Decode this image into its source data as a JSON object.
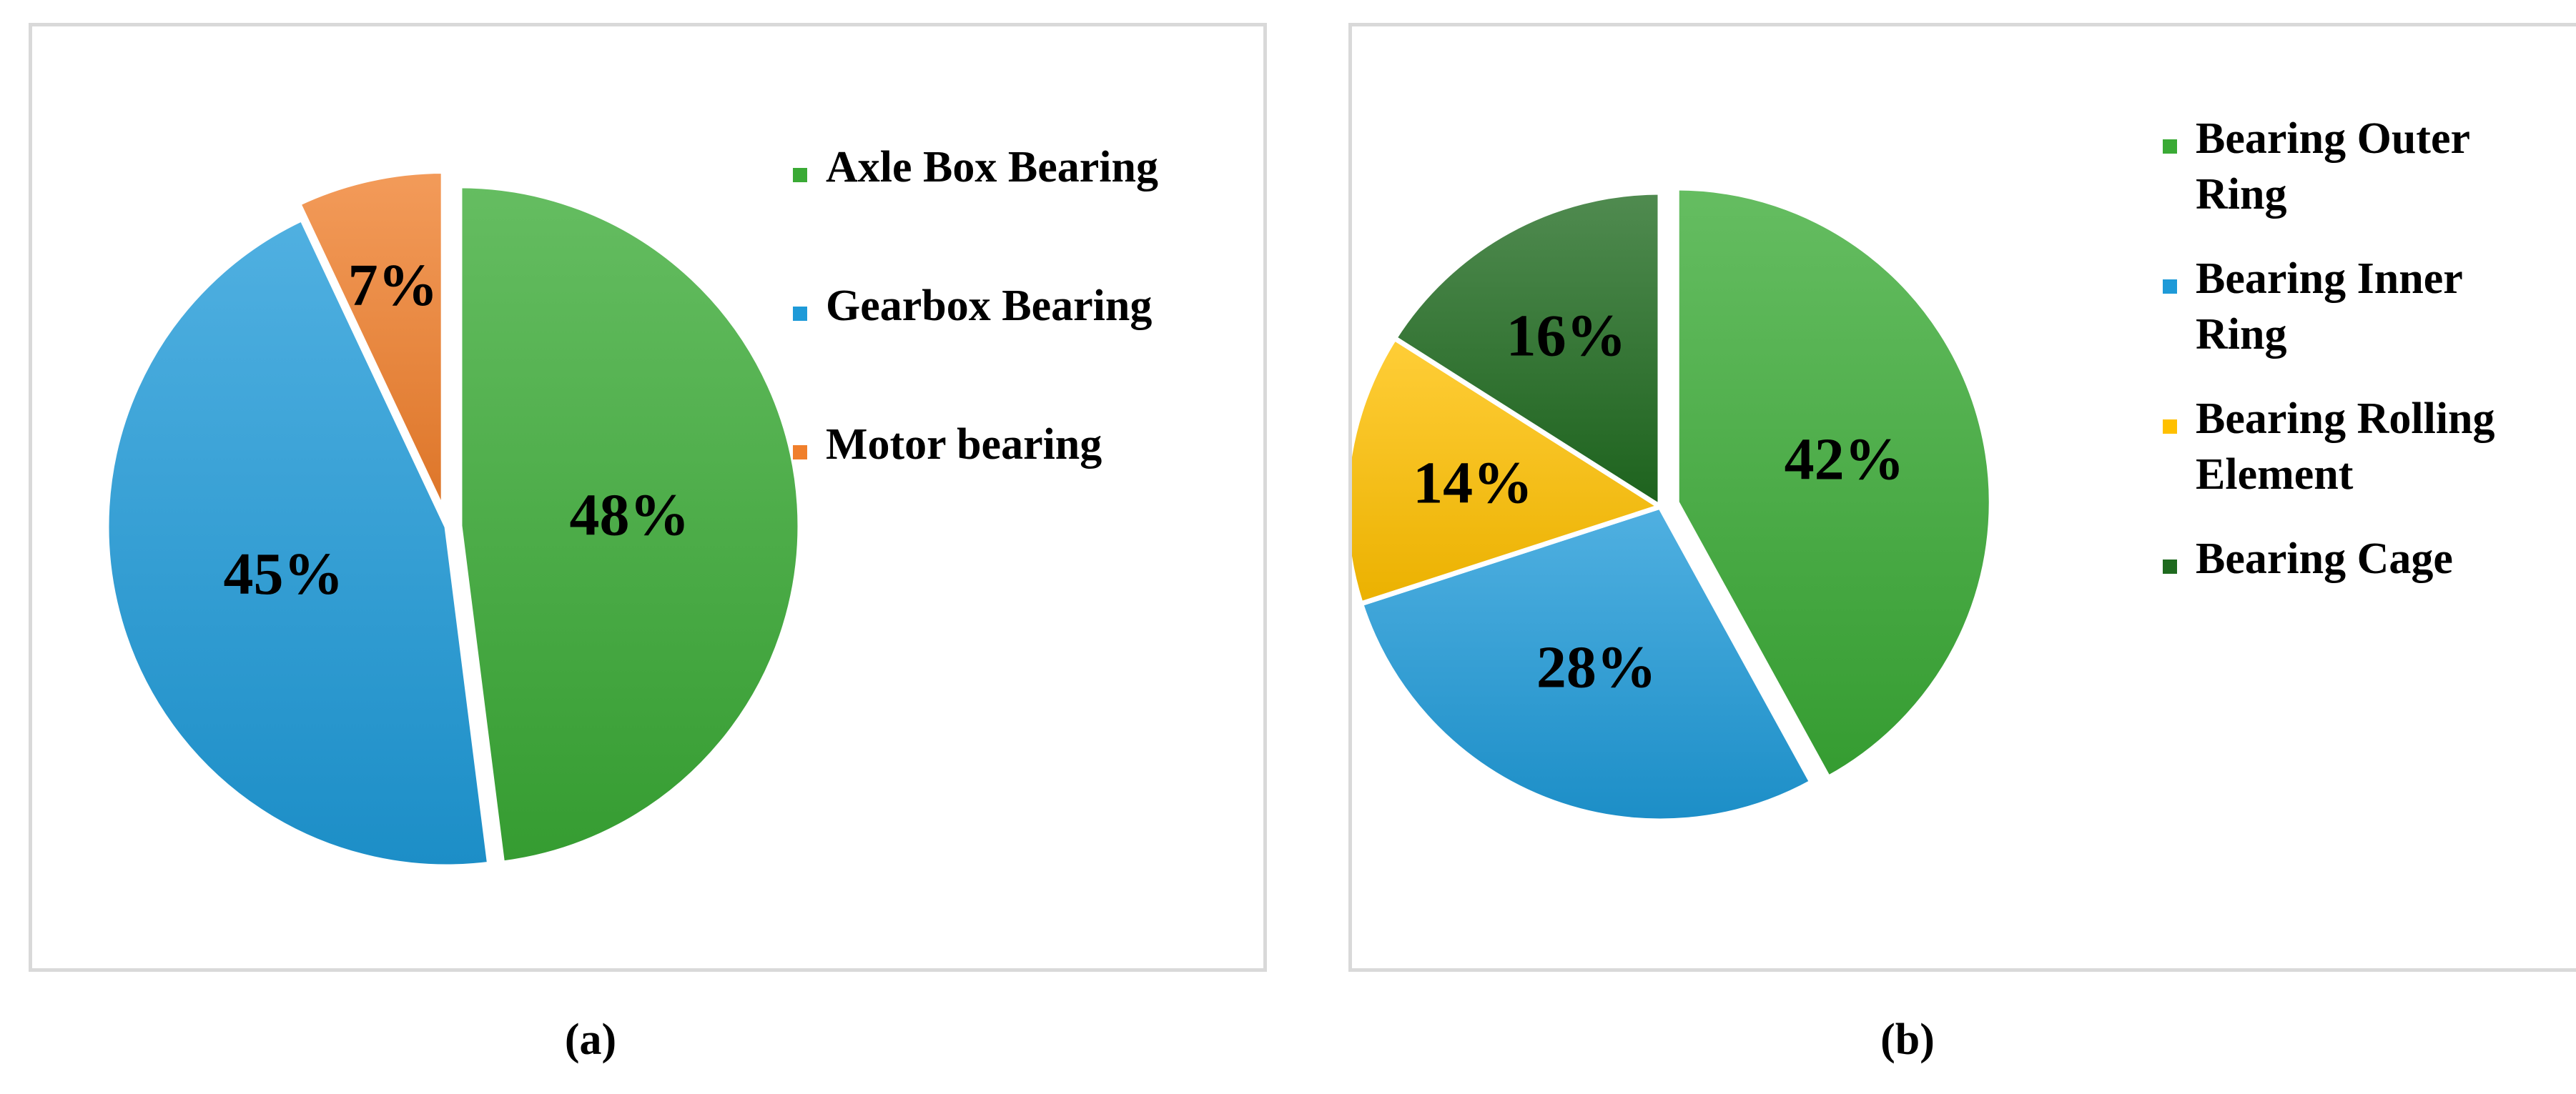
{
  "chart_data": [
    {
      "type": "pie",
      "caption": "(a)",
      "categories": [
        "Axle Box Bearing",
        "Gearbox Bearing",
        "Motor bearing"
      ],
      "values": [
        48,
        45,
        7
      ],
      "labels": [
        "48%",
        "45%",
        "7%"
      ],
      "colors": [
        "#3aaa35",
        "#1e9ad8",
        "#f07f2b"
      ],
      "legend_position": "right"
    },
    {
      "type": "pie",
      "caption": "(b)",
      "categories": [
        "Bearing Outer Ring",
        "Bearing Inner Ring",
        "Bearing Rolling Element",
        "Bearing Cage"
      ],
      "values": [
        42,
        28,
        14,
        16
      ],
      "labels": [
        "42%",
        "28%",
        "14%",
        "16%"
      ],
      "colors": [
        "#3aaa35",
        "#1e9ad8",
        "#ffc000",
        "#1f6a1f"
      ],
      "legend_position": "right"
    }
  ]
}
